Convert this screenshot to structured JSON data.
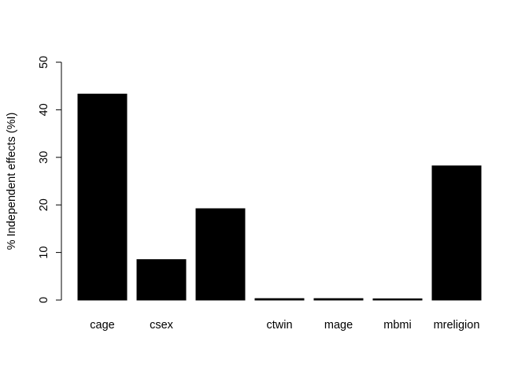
{
  "chart_data": {
    "type": "bar",
    "title": "",
    "xlabel": "",
    "ylabel": "% Independent effects (%I)",
    "categories": [
      "cage",
      "csex",
      "",
      "ctwin",
      "mage",
      "mbmi",
      "mreligion"
    ],
    "values": [
      43.3,
      8.5,
      19.2,
      0.3,
      0.3,
      0.2,
      28.2
    ],
    "ylim": [
      0,
      50
    ],
    "yticks": [
      0,
      10,
      20,
      30,
      40,
      50
    ],
    "grid": false,
    "legend": "none",
    "bar_color": "#000000"
  }
}
